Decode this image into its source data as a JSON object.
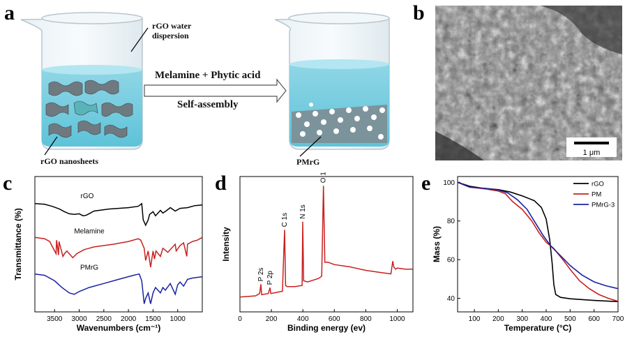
{
  "schematic": {
    "panel_letter": "a",
    "label_dispersion": [
      "rGO water",
      "dispersion"
    ],
    "label_nanosheets": "rGO nanosheets",
    "arrow_top": "Melamine + Phytic acid",
    "arrow_bottom": "Self-assembly",
    "label_product": "PMrG"
  },
  "sem": {
    "panel_letter": "b",
    "scale_bar": "1 μm"
  },
  "chart_data": [
    {
      "panel": "c",
      "type": "line",
      "xlabel": "Wavenumbers (cm⁻¹)",
      "ylabel": "Transmittance (%)",
      "x_reversed": true,
      "xlim": [
        3900,
        500
      ],
      "xticks": [
        3500,
        3000,
        2500,
        2000,
        1500,
        1000
      ],
      "series": [
        {
          "name": "rGO",
          "color": "#000000",
          "offset": 0.2,
          "points": [
            [
              3900,
              0.0
            ],
            [
              3700,
              0.005
            ],
            [
              3550,
              0.02
            ],
            [
              3400,
              0.04
            ],
            [
              3300,
              0.06
            ],
            [
              3200,
              0.075
            ],
            [
              3100,
              0.08
            ],
            [
              3000,
              0.075
            ],
            [
              2920,
              0.09
            ],
            [
              2850,
              0.085
            ],
            [
              2700,
              0.055
            ],
            [
              2400,
              0.04
            ],
            [
              2000,
              0.03
            ],
            [
              1800,
              0.02
            ],
            [
              1730,
              0.0
            ],
            [
              1700,
              0.12
            ],
            [
              1650,
              0.16
            ],
            [
              1600,
              0.12
            ],
            [
              1570,
              0.08
            ],
            [
              1500,
              0.06
            ],
            [
              1450,
              0.09
            ],
            [
              1400,
              0.07
            ],
            [
              1350,
              0.05
            ],
            [
              1300,
              0.07
            ],
            [
              1220,
              0.05
            ],
            [
              1150,
              0.03
            ],
            [
              1050,
              0.055
            ],
            [
              950,
              0.035
            ],
            [
              800,
              0.03
            ],
            [
              650,
              0.015
            ],
            [
              500,
              0.01
            ]
          ]
        },
        {
          "name": "Melamine",
          "color": "#c82020",
          "offset": 0.45,
          "points": [
            [
              3900,
              0.0
            ],
            [
              3700,
              0.01
            ],
            [
              3600,
              0.03
            ],
            [
              3470,
              0.12
            ],
            [
              3460,
              0.02
            ],
            [
              3420,
              0.13
            ],
            [
              3410,
              0.03
            ],
            [
              3330,
              0.14
            ],
            [
              3300,
              0.12
            ],
            [
              3250,
              0.1
            ],
            [
              3130,
              0.15
            ],
            [
              3050,
              0.12
            ],
            [
              2900,
              0.09
            ],
            [
              2700,
              0.07
            ],
            [
              2300,
              0.05
            ],
            [
              2000,
              0.03
            ],
            [
              1800,
              0.01
            ],
            [
              1750,
              0.02
            ],
            [
              1680,
              0.08
            ],
            [
              1650,
              0.17
            ],
            [
              1600,
              0.1
            ],
            [
              1550,
              0.22
            ],
            [
              1500,
              0.1
            ],
            [
              1470,
              0.16
            ],
            [
              1440,
              0.1
            ],
            [
              1350,
              0.14
            ],
            [
              1300,
              0.08
            ],
            [
              1200,
              0.11
            ],
            [
              1050,
              0.05
            ],
            [
              1030,
              0.1
            ],
            [
              950,
              0.06
            ],
            [
              880,
              0.04
            ],
            [
              815,
              0.14
            ],
            [
              800,
              0.05
            ],
            [
              700,
              0.03
            ],
            [
              600,
              0.02
            ],
            [
              500,
              0.0
            ]
          ]
        },
        {
          "name": "PMrG",
          "color": "#1a22a0",
          "offset": 0.72,
          "points": [
            [
              3900,
              0.0
            ],
            [
              3700,
              0.01
            ],
            [
              3500,
              0.05
            ],
            [
              3350,
              0.1
            ],
            [
              3200,
              0.14
            ],
            [
              3100,
              0.15
            ],
            [
              3000,
              0.13
            ],
            [
              2800,
              0.1
            ],
            [
              2500,
              0.07
            ],
            [
              2200,
              0.04
            ],
            [
              1900,
              0.01
            ],
            [
              1780,
              0.0
            ],
            [
              1730,
              0.05
            ],
            [
              1680,
              0.22
            ],
            [
              1650,
              0.18
            ],
            [
              1600,
              0.14
            ],
            [
              1550,
              0.22
            ],
            [
              1500,
              0.14
            ],
            [
              1450,
              0.1
            ],
            [
              1350,
              0.14
            ],
            [
              1300,
              0.1
            ],
            [
              1250,
              0.12
            ],
            [
              1150,
              0.07
            ],
            [
              1050,
              0.15
            ],
            [
              1000,
              0.08
            ],
            [
              950,
              0.06
            ],
            [
              880,
              0.09
            ],
            [
              800,
              0.04
            ],
            [
              700,
              0.03
            ],
            [
              500,
              0.02
            ]
          ]
        }
      ]
    },
    {
      "panel": "d",
      "type": "line",
      "xlabel": "Binding energy (ev)",
      "ylabel": "Intensity",
      "xlim": [
        0,
        1100
      ],
      "xticks": [
        0,
        200,
        400,
        600,
        800,
        1000
      ],
      "color": "#c82020",
      "points": [
        [
          0,
          0.02
        ],
        [
          100,
          0.03
        ],
        [
          125,
          0.05
        ],
        [
          133,
          0.13
        ],
        [
          138,
          0.04
        ],
        [
          180,
          0.05
        ],
        [
          191,
          0.1
        ],
        [
          196,
          0.05
        ],
        [
          270,
          0.07
        ],
        [
          284,
          0.6
        ],
        [
          290,
          0.12
        ],
        [
          300,
          0.11
        ],
        [
          350,
          0.11
        ],
        [
          395,
          0.12
        ],
        [
          399,
          0.67
        ],
        [
          405,
          0.16
        ],
        [
          430,
          0.15
        ],
        [
          500,
          0.18
        ],
        [
          520,
          0.2
        ],
        [
          531,
          0.98
        ],
        [
          540,
          0.32
        ],
        [
          560,
          0.32
        ],
        [
          600,
          0.3
        ],
        [
          700,
          0.28
        ],
        [
          800,
          0.25
        ],
        [
          900,
          0.23
        ],
        [
          960,
          0.22
        ],
        [
          972,
          0.33
        ],
        [
          978,
          0.28
        ],
        [
          990,
          0.26
        ],
        [
          1000,
          0.27
        ],
        [
          1050,
          0.26
        ],
        [
          1100,
          0.26
        ]
      ],
      "peak_labels": [
        {
          "text": "P 2s",
          "x": 133
        },
        {
          "text": "P 2p",
          "x": 191
        },
        {
          "text": "C 1s",
          "x": 284
        },
        {
          "text": "N 1s",
          "x": 399
        },
        {
          "text": "O 1s",
          "x": 531
        }
      ]
    },
    {
      "panel": "e",
      "type": "line",
      "xlabel": "Temperature (°C)",
      "ylabel": "Mass (%)",
      "xlim": [
        30,
        700
      ],
      "ylim": [
        33,
        103
      ],
      "xticks": [
        100,
        200,
        300,
        400,
        500,
        600,
        700
      ],
      "yticks": [
        40,
        60,
        80,
        100
      ],
      "legend": "top-right",
      "series": [
        {
          "name": "rGO",
          "color": "#000000",
          "points": [
            [
              30,
              100
            ],
            [
              80,
              98
            ],
            [
              130,
              97
            ],
            [
              200,
              96.2
            ],
            [
              250,
              95
            ],
            [
              300,
              93
            ],
            [
              350,
              90.5
            ],
            [
              380,
              87
            ],
            [
              400,
              81
            ],
            [
              415,
              70
            ],
            [
              425,
              58
            ],
            [
              432,
              47
            ],
            [
              440,
              42
            ],
            [
              460,
              40.5
            ],
            [
              500,
              39.8
            ],
            [
              600,
              38.9
            ],
            [
              700,
              38.3
            ]
          ]
        },
        {
          "name": "PM",
          "color": "#c82020",
          "points": [
            [
              30,
              100
            ],
            [
              80,
              97.5
            ],
            [
              150,
              96.5
            ],
            [
              200,
              95.5
            ],
            [
              230,
              94
            ],
            [
              260,
              90
            ],
            [
              300,
              86
            ],
            [
              340,
              80
            ],
            [
              370,
              74
            ],
            [
              400,
              69
            ],
            [
              430,
              66
            ],
            [
              470,
              60
            ],
            [
              500,
              55
            ],
            [
              540,
              49
            ],
            [
              580,
              45
            ],
            [
              620,
              42
            ],
            [
              660,
              40
            ],
            [
              700,
              38.5
            ]
          ]
        },
        {
          "name": "PMrG-3",
          "color": "#1a22a0",
          "points": [
            [
              30,
              100
            ],
            [
              80,
              97.5
            ],
            [
              150,
              96.8
            ],
            [
              200,
              96
            ],
            [
              240,
              94.5
            ],
            [
              280,
              91
            ],
            [
              320,
              86
            ],
            [
              360,
              78
            ],
            [
              390,
              72
            ],
            [
              420,
              67
            ],
            [
              460,
              62
            ],
            [
              500,
              57
            ],
            [
              550,
              52
            ],
            [
              600,
              48.5
            ],
            [
              650,
              46.5
            ],
            [
              700,
              45
            ]
          ]
        }
      ]
    }
  ]
}
